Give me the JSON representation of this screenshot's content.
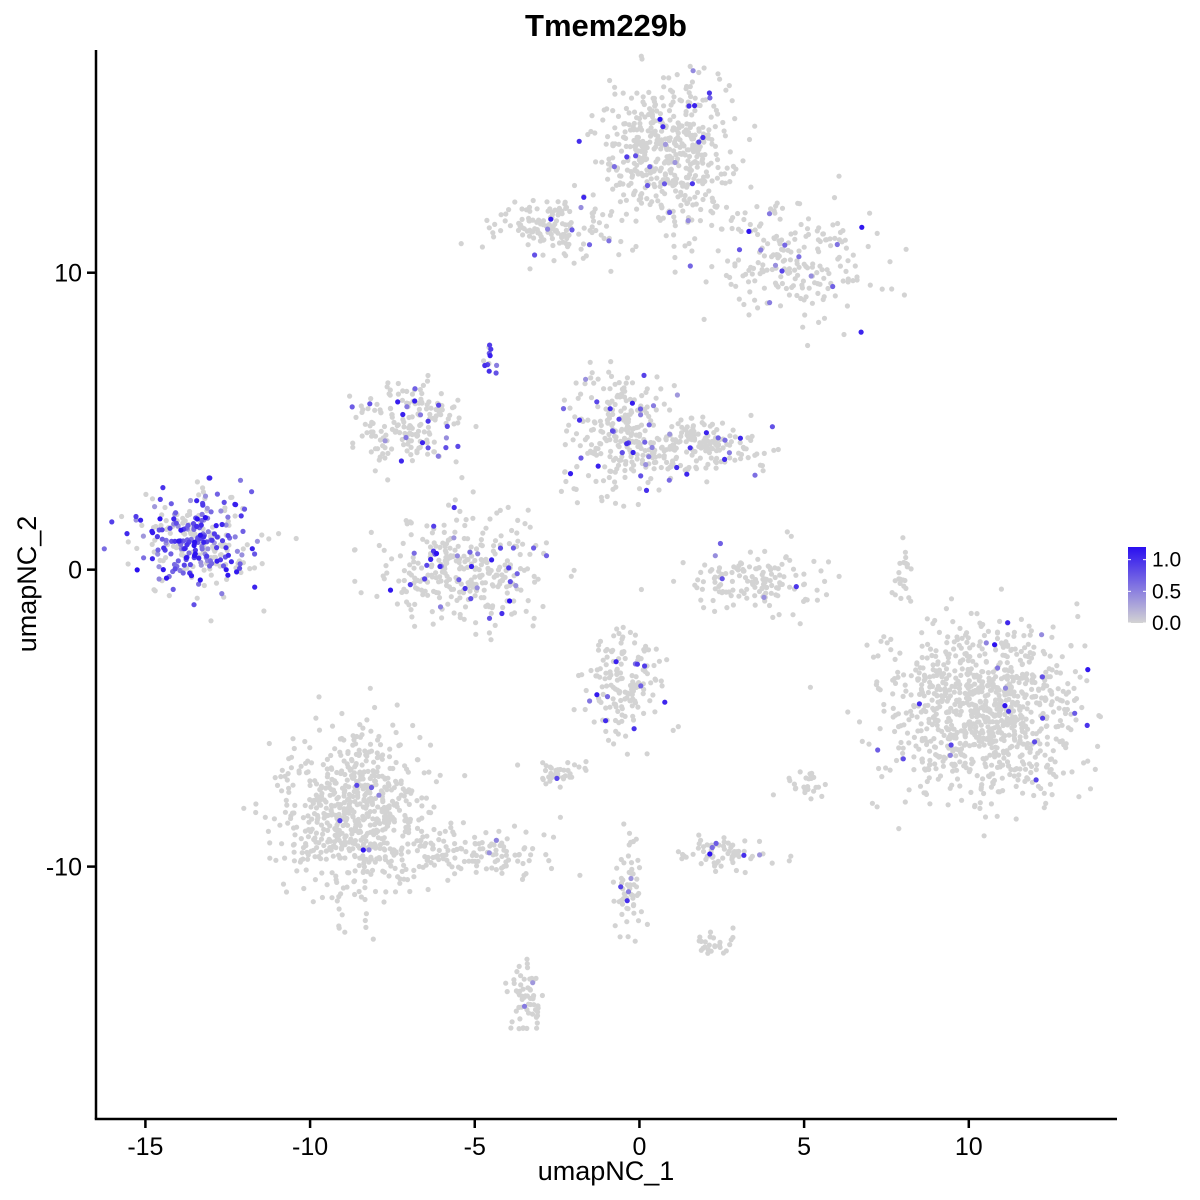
{
  "chart_data": {
    "type": "scatter",
    "title": "Tmem229b",
    "xlabel": "umapNC_1",
    "ylabel": "umapNC_2",
    "xlim": [
      -16.5,
      14.5
    ],
    "ylim": [
      -18.5,
      17.5
    ],
    "xticks": [
      -15,
      -10,
      -5,
      0,
      5,
      10
    ],
    "xtick_labels": [
      "-15",
      "-10",
      "-5",
      "0",
      "5",
      "10"
    ],
    "yticks": [
      -10,
      0,
      10
    ],
    "ytick_labels": [
      "-10",
      "0",
      "10"
    ],
    "grid": false,
    "legend_position": "right",
    "color_scale": {
      "low": "#d3d3d3",
      "high": "#2a0ff0",
      "min": 0.0,
      "max": 1.2,
      "ticks": [
        0.0,
        0.5,
        1.0
      ],
      "tick_labels": [
        "0.0",
        "0.5",
        "1.0"
      ]
    },
    "clusters": [
      {
        "cx": 0.8,
        "cy": 14.0,
        "sx": 1.0,
        "sy": 1.2,
        "n": 500,
        "expr_frac": 0.05
      },
      {
        "cx": 4.5,
        "cy": 10.5,
        "sx": 1.3,
        "sy": 1.0,
        "n": 220,
        "expr_frac": 0.07
      },
      {
        "cx": -2.6,
        "cy": 11.5,
        "sx": 0.9,
        "sy": 0.5,
        "n": 150,
        "expr_frac": 0.04
      },
      {
        "cx": -13.5,
        "cy": 1.0,
        "sx": 0.9,
        "sy": 0.8,
        "n": 320,
        "expr_frac": 0.55
      },
      {
        "cx": -7.0,
        "cy": 5.0,
        "sx": 0.8,
        "sy": 0.7,
        "n": 180,
        "expr_frac": 0.12
      },
      {
        "cx": -5.3,
        "cy": 0.0,
        "sx": 1.3,
        "sy": 0.9,
        "n": 320,
        "expr_frac": 0.12
      },
      {
        "cx": -0.6,
        "cy": 4.6,
        "sx": 0.8,
        "sy": 1.0,
        "n": 260,
        "expr_frac": 0.08
      },
      {
        "cx": 1.8,
        "cy": 4.1,
        "sx": 0.9,
        "sy": 0.5,
        "n": 180,
        "expr_frac": 0.08
      },
      {
        "cx": 3.6,
        "cy": -0.4,
        "sx": 1.0,
        "sy": 0.5,
        "n": 140,
        "expr_frac": 0.05
      },
      {
        "cx": 10.5,
        "cy": -4.8,
        "sx": 1.5,
        "sy": 1.5,
        "n": 950,
        "expr_frac": 0.04
      },
      {
        "cx": -8.6,
        "cy": -8.3,
        "sx": 1.1,
        "sy": 1.4,
        "n": 680,
        "expr_frac": 0.01
      },
      {
        "cx": -4.9,
        "cy": -9.5,
        "sx": 1.1,
        "sy": 0.45,
        "n": 120,
        "expr_frac": 0.04
      },
      {
        "cx": -0.5,
        "cy": -3.8,
        "sx": 0.6,
        "sy": 0.9,
        "n": 160,
        "expr_frac": 0.06
      },
      {
        "cx": -2.5,
        "cy": -6.9,
        "sx": 0.35,
        "sy": 0.2,
        "n": 40,
        "expr_frac": 0.15
      },
      {
        "cx": 2.6,
        "cy": -9.6,
        "sx": 0.7,
        "sy": 0.3,
        "n": 70,
        "expr_frac": 0.05
      },
      {
        "cx": -3.4,
        "cy": -14.6,
        "sx": 0.25,
        "sy": 0.6,
        "n": 60,
        "expr_frac": 0.03
      },
      {
        "cx": -0.3,
        "cy": -10.7,
        "sx": 0.3,
        "sy": 0.9,
        "n": 60,
        "expr_frac": 0.02
      },
      {
        "cx": 2.3,
        "cy": -12.6,
        "sx": 0.3,
        "sy": 0.2,
        "n": 25,
        "expr_frac": 0.0
      },
      {
        "cx": 8.0,
        "cy": -0.1,
        "sx": 0.2,
        "sy": 0.5,
        "n": 22,
        "expr_frac": 0.0
      },
      {
        "cx": 5.0,
        "cy": -7.2,
        "sx": 0.3,
        "sy": 0.3,
        "n": 25,
        "expr_frac": 0.0
      },
      {
        "cx": -4.5,
        "cy": 7.1,
        "sx": 0.1,
        "sy": 0.25,
        "n": 12,
        "expr_frac": 0.8
      }
    ]
  }
}
